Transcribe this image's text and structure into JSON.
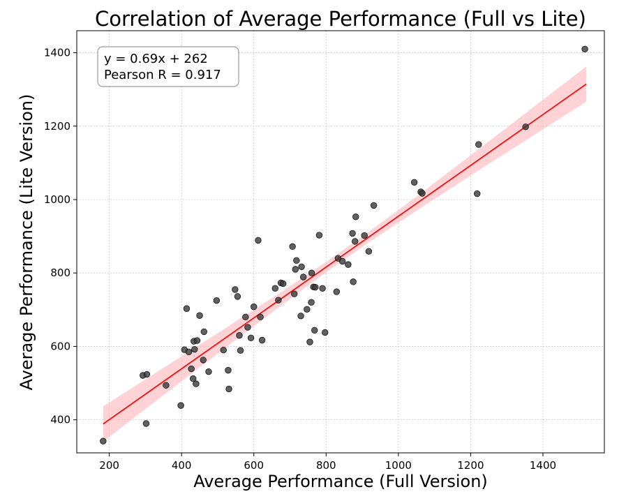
{
  "chart_data": {
    "type": "scatter",
    "title": "Correlation of Average Performance (Full vs Lite)",
    "xlabel": "Average Performance (Full Version)",
    "ylabel": "Average Performance (Lite Version)",
    "xlim": [
      110,
      1570
    ],
    "ylim": [
      310,
      1460
    ],
    "xticks": [
      200,
      400,
      600,
      800,
      1000,
      1200,
      1400
    ],
    "yticks": [
      400,
      600,
      800,
      1000,
      1200,
      1400
    ],
    "grid": true,
    "annotation": {
      "line1": "y = 0.69x + 262",
      "line2": "Pearson R = 0.917",
      "placement": "top-left"
    },
    "regression": {
      "slope": 0.6925,
      "intercept": 262,
      "x_range": [
        183,
        1520
      ],
      "ci_half_width_ends": 48,
      "ci_half_width_center": 14,
      "line_color": "#ee1111",
      "band_color": "#ffb6bb"
    },
    "point_color": "#3a3a3a",
    "points": [
      [
        183,
        342
      ],
      [
        293,
        521
      ],
      [
        302,
        390
      ],
      [
        304,
        524
      ],
      [
        357,
        494
      ],
      [
        398,
        439
      ],
      [
        408,
        591
      ],
      [
        414,
        703
      ],
      [
        420,
        585
      ],
      [
        427,
        539
      ],
      [
        432,
        512
      ],
      [
        434,
        614
      ],
      [
        436,
        592
      ],
      [
        440,
        498
      ],
      [
        443,
        616
      ],
      [
        450,
        684
      ],
      [
        460,
        563
      ],
      [
        462,
        640
      ],
      [
        475,
        531
      ],
      [
        497,
        725
      ],
      [
        516,
        590
      ],
      [
        529,
        535
      ],
      [
        531,
        484
      ],
      [
        548,
        755
      ],
      [
        555,
        736
      ],
      [
        560,
        630
      ],
      [
        563,
        589
      ],
      [
        577,
        680
      ],
      [
        583,
        652
      ],
      [
        592,
        623
      ],
      [
        600,
        708
      ],
      [
        612,
        889
      ],
      [
        618,
        680
      ],
      [
        623,
        617
      ],
      [
        659,
        758
      ],
      [
        668,
        726
      ],
      [
        675,
        773
      ],
      [
        681,
        771
      ],
      [
        707,
        872
      ],
      [
        712,
        743
      ],
      [
        715,
        810
      ],
      [
        718,
        834
      ],
      [
        730,
        683
      ],
      [
        732,
        817
      ],
      [
        737,
        789
      ],
      [
        747,
        701
      ],
      [
        755,
        612
      ],
      [
        759,
        720
      ],
      [
        760,
        800
      ],
      [
        765,
        762
      ],
      [
        768,
        644
      ],
      [
        770,
        761
      ],
      [
        781,
        903
      ],
      [
        790,
        758
      ],
      [
        797,
        638
      ],
      [
        829,
        749
      ],
      [
        833,
        840
      ],
      [
        845,
        832
      ],
      [
        861,
        823
      ],
      [
        873,
        908
      ],
      [
        875,
        776
      ],
      [
        880,
        886
      ],
      [
        882,
        953
      ],
      [
        906,
        902
      ],
      [
        918,
        859
      ],
      [
        932,
        984
      ],
      [
        1044,
        1047
      ],
      [
        1062,
        1021
      ],
      [
        1066,
        1017
      ],
      [
        1218,
        1016
      ],
      [
        1222,
        1150
      ],
      [
        1352,
        1198
      ],
      [
        1516,
        1410
      ]
    ]
  }
}
